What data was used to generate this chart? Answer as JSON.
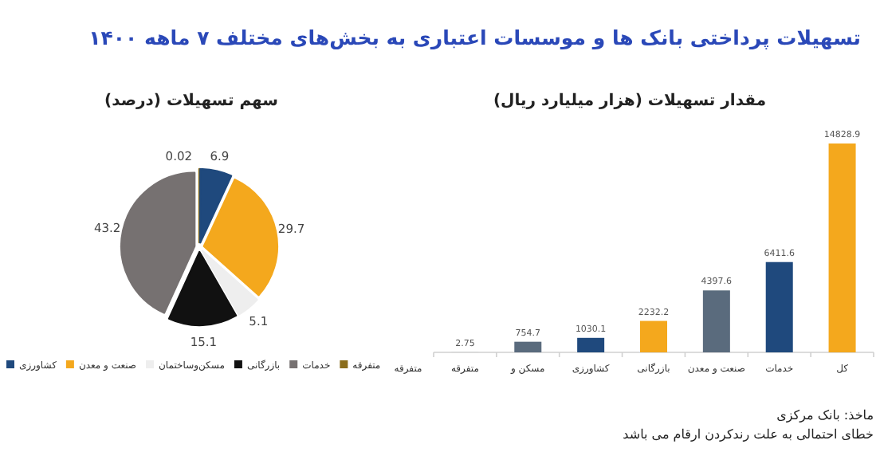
{
  "chart_data": [
    {
      "type": "other",
      "title": "تسهیلات پرداختی بانک ها و موسسات اعتباری به بخش‌های مختلف ۷ ماهه ۱۴۰۰",
      "annotations": [
        "ماخذ: بانک مرکزی",
        "خطای احتمالی به علت رندکردن ارقام می باشد"
      ]
    },
    {
      "type": "pie",
      "title": "سهم تسهیلات (درصد)",
      "categories": [
        "متفرقه",
        "کشاورزی",
        "صنعت و معدن",
        "مسکن‌وساختمان",
        "بازرگانی",
        "خدمات"
      ],
      "values": [
        0.02,
        6.9,
        29.7,
        5.1,
        15.1,
        43.2
      ],
      "colors": [
        "#8a6d1c",
        "#1f497d",
        "#f4a81d",
        "#eeeeee",
        "#111111",
        "#767171"
      ],
      "data_labels": true,
      "legend": "bottom"
    },
    {
      "type": "bar",
      "title": "مقدار تسهیلات (هزار میلیارد ریال)",
      "categories": [
        "متفرقه",
        "مسکن و",
        "کشاورزی",
        "بازرگانی",
        "صنعت و معدن",
        "خدمات",
        "کل"
      ],
      "values": [
        2.75,
        754.7,
        1030.1,
        2232.2,
        4397.6,
        6411.6,
        14828.9
      ],
      "colors": [
        "#5a6b7d",
        "#5a6b7d",
        "#1f497d",
        "#f4a81d",
        "#5a6b7d",
        "#1f497d",
        "#f4a81d"
      ],
      "data_labels": true,
      "annotations": [
        "متفرقه"
      ]
    }
  ]
}
